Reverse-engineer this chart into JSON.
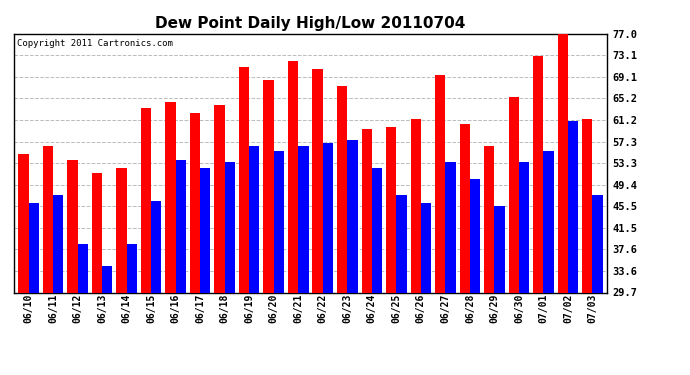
{
  "title": "Dew Point Daily High/Low 20110704",
  "copyright": "Copyright 2011 Cartronics.com",
  "dates": [
    "06/10",
    "06/11",
    "06/12",
    "06/13",
    "06/14",
    "06/15",
    "06/16",
    "06/17",
    "06/18",
    "06/19",
    "06/20",
    "06/21",
    "06/22",
    "06/23",
    "06/24",
    "06/25",
    "06/26",
    "06/27",
    "06/28",
    "06/29",
    "06/30",
    "07/01",
    "07/02",
    "07/03"
  ],
  "highs": [
    55.0,
    56.5,
    54.0,
    51.5,
    52.5,
    63.5,
    64.5,
    62.5,
    64.0,
    71.0,
    68.5,
    72.0,
    70.5,
    67.5,
    59.5,
    60.0,
    61.5,
    69.5,
    60.5,
    56.5,
    65.5,
    73.0,
    77.0,
    61.5
  ],
  "lows": [
    46.0,
    47.5,
    38.5,
    34.5,
    38.5,
    46.5,
    54.0,
    52.5,
    53.5,
    56.5,
    55.5,
    56.5,
    57.0,
    57.5,
    52.5,
    47.5,
    46.0,
    53.5,
    50.5,
    45.5,
    53.5,
    55.5,
    61.0,
    47.5
  ],
  "high_color": "#ff0000",
  "low_color": "#0000ff",
  "bg_color": "#ffffff",
  "yticks": [
    29.7,
    33.6,
    37.6,
    41.5,
    45.5,
    49.4,
    53.3,
    57.3,
    61.2,
    65.2,
    69.1,
    73.1,
    77.0
  ],
  "ylim_min": 29.7,
  "ylim_max": 77.0,
  "grid_color": "#bbbbbb",
  "title_fontsize": 11
}
